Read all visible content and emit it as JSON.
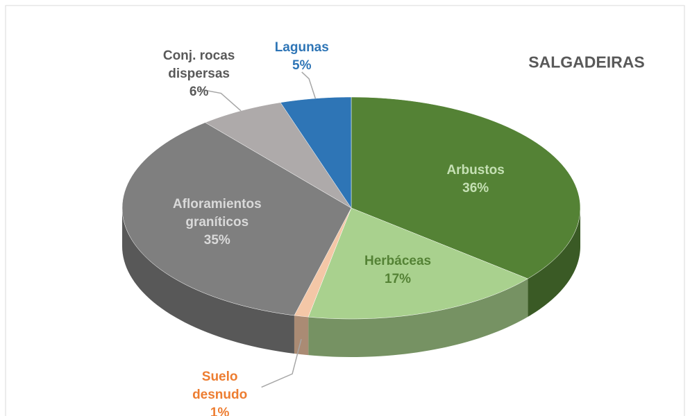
{
  "chart_data": {
    "type": "pie3d",
    "title": "SALGADEIRAS",
    "categories": [
      "Arbustos",
      "Herbáceas",
      "Suelo desnudo",
      "Afloramientos graníticos",
      "Conj. rocas dispersas",
      "Lagunas"
    ],
    "values": [
      36,
      17,
      1,
      35,
      6,
      5
    ],
    "value_labels": [
      "36%",
      "17%",
      "1%",
      "35%",
      "6%",
      "5%"
    ],
    "colors": [
      "#548235",
      "#a9d18e",
      "#f4c7a7",
      "#7f7f7f",
      "#aeaaaa",
      "#2e75b6"
    ],
    "label_colors": [
      "#c5e0b4",
      "#548235",
      "#ed7d31",
      "#d9d9d9",
      "#595959",
      "#2e75b6"
    ]
  }
}
